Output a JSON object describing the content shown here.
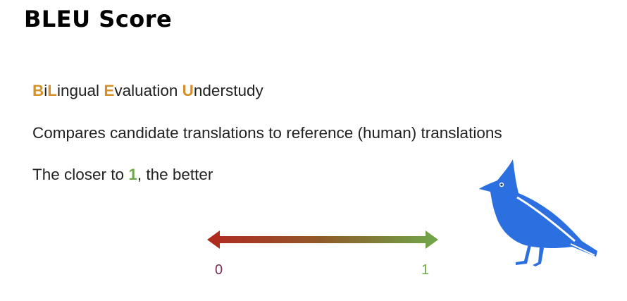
{
  "title": "BLEU Score",
  "acronym": {
    "w1_first": "B",
    "w1_i": "i",
    "w1_second": "L",
    "w1_rest": "ingual ",
    "w2_first": "E",
    "w2_rest": "valuation ",
    "w3_first": "U",
    "w3_rest": "nderstudy"
  },
  "description": "Compares candidate translations to reference (human) translations",
  "closer": {
    "before": "The closer to ",
    "value": "1",
    "after": ", the better"
  },
  "scale": {
    "min_label": "0",
    "max_label": "1",
    "color_low": "#b1281e",
    "color_high": "#6fa84a"
  },
  "bird": {
    "icon": "bluebird-icon",
    "color": "#2c6fe0"
  }
}
